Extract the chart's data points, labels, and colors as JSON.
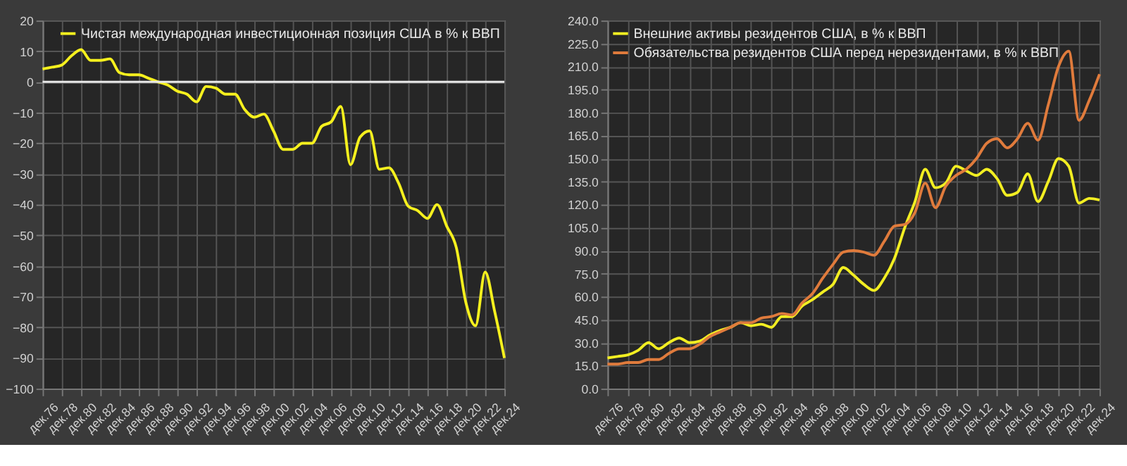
{
  "chart_data": [
    {
      "type": "line",
      "categories": [
        "дек.76",
        null,
        "дек.78",
        null,
        "дек.80",
        null,
        "дек.82",
        null,
        "дек.84",
        null,
        "дек.86",
        null,
        "дек.88",
        null,
        "дек.90",
        null,
        "дек.92",
        null,
        "дек.94",
        null,
        "дек.96",
        null,
        "дек.98",
        null,
        "дек.00",
        null,
        "дек.02",
        null,
        "дек.04",
        null,
        "дек.06",
        null,
        "дек.08",
        null,
        "дек.10",
        null,
        "дек.12",
        null,
        "дек.14",
        null,
        "дек.16",
        null,
        "дек.18",
        null,
        "дек.20",
        null,
        "дек.22",
        null,
        "дек.24"
      ],
      "series": [
        {
          "name": "Чистая международная инвестиционная позиция США в % к ВВП",
          "color": "#f5f01e",
          "values": [
            4.2,
            4.8,
            5.5,
            8.5,
            10.5,
            7,
            7,
            7.5,
            3,
            2.3,
            2.3,
            1.2,
            0,
            -1,
            -3,
            -4,
            -6.5,
            -1.5,
            -2,
            -4,
            -4,
            -9,
            -11.5,
            -10.5,
            -16,
            -22,
            -22,
            -20,
            -20,
            -14.5,
            -13,
            -8,
            -27,
            -18,
            -16,
            -28.5,
            -28,
            -33,
            -40.5,
            -42,
            -44.5,
            -40,
            -47,
            -54,
            -72,
            -79.5,
            -62,
            -75,
            -90
          ]
        }
      ],
      "ylim": [
        -100,
        20
      ],
      "yticks": [
        -100,
        -90,
        -80,
        -70,
        -60,
        -50,
        -40,
        -30,
        -20,
        -10,
        0,
        10,
        20
      ],
      "ref_lines": [
        {
          "axis": "y",
          "value": 0,
          "color": "#e8e8e8"
        }
      ],
      "grid": true,
      "legend": "top right"
    },
    {
      "type": "line",
      "categories": [
        "дек.76",
        null,
        "дек.78",
        null,
        "дек.80",
        null,
        "дек.82",
        null,
        "дек.84",
        null,
        "дек.86",
        null,
        "дек.88",
        null,
        "дек.90",
        null,
        "дек.92",
        null,
        "дек.94",
        null,
        "дек.96",
        null,
        "дек.98",
        null,
        "дек.00",
        null,
        "дек.02",
        null,
        "дек.04",
        null,
        "дек.06",
        null,
        "дек.08",
        null,
        "дек.10",
        null,
        "дек.12",
        null,
        "дек.14",
        null,
        "дек.16",
        null,
        "дек.18",
        null,
        "дек.20",
        null,
        "дек.22",
        null,
        "дек.24"
      ],
      "series": [
        {
          "name": "Внешние активы резидентов США, в % к ВВП",
          "color": "#f2ee22",
          "values": [
            20,
            21,
            22,
            25,
            30,
            26,
            30,
            33,
            30,
            31,
            35,
            38,
            40,
            43,
            41,
            42,
            40,
            47,
            47,
            54,
            58,
            63,
            68,
            79,
            74,
            68,
            64,
            72,
            85,
            105,
            122,
            143,
            131,
            134,
            145,
            142,
            139,
            143,
            137,
            126,
            128,
            140,
            122,
            135,
            150,
            145,
            121,
            124,
            123
          ]
        },
        {
          "name": "Обязательства резидентов США перед нерезидентами, в % к ВВП",
          "color": "#e07b3c",
          "values": [
            16,
            16,
            17,
            17,
            19,
            19,
            23,
            26,
            26,
            29,
            34,
            37,
            40,
            43,
            43,
            46,
            47,
            49,
            48,
            56,
            62,
            72,
            81,
            89,
            90,
            89,
            87,
            96,
            106,
            107,
            115,
            134,
            118,
            132,
            139,
            143,
            150,
            160,
            163,
            157,
            163,
            173,
            162,
            185,
            210,
            220,
            175,
            188,
            205
          ]
        }
      ],
      "ylim": [
        0,
        240
      ],
      "yticks": [
        {
          "value": 0,
          "label": "0.0"
        },
        {
          "value": 15,
          "label": "15.0"
        },
        {
          "value": 30,
          "label": "30.0"
        },
        {
          "value": 45,
          "label": "45.0"
        },
        {
          "value": 60,
          "label": "60.0"
        },
        {
          "value": 75,
          "label": "75.0"
        },
        {
          "value": 90,
          "label": "90.0"
        },
        {
          "value": 105,
          "label": "105.0"
        },
        {
          "value": 120,
          "label": "120.0"
        },
        {
          "value": 135,
          "label": "135.0"
        },
        {
          "value": 150,
          "label": "150.0"
        },
        {
          "value": 165,
          "label": "165.0"
        },
        {
          "value": 180,
          "label": "180.0"
        },
        {
          "value": 195,
          "label": "195.0"
        },
        {
          "value": 210,
          "label": "210.0"
        },
        {
          "value": 225,
          "label": "225.0"
        },
        {
          "value": 240,
          "label": "240.0"
        }
      ],
      "grid": true,
      "legend": "top left"
    }
  ]
}
